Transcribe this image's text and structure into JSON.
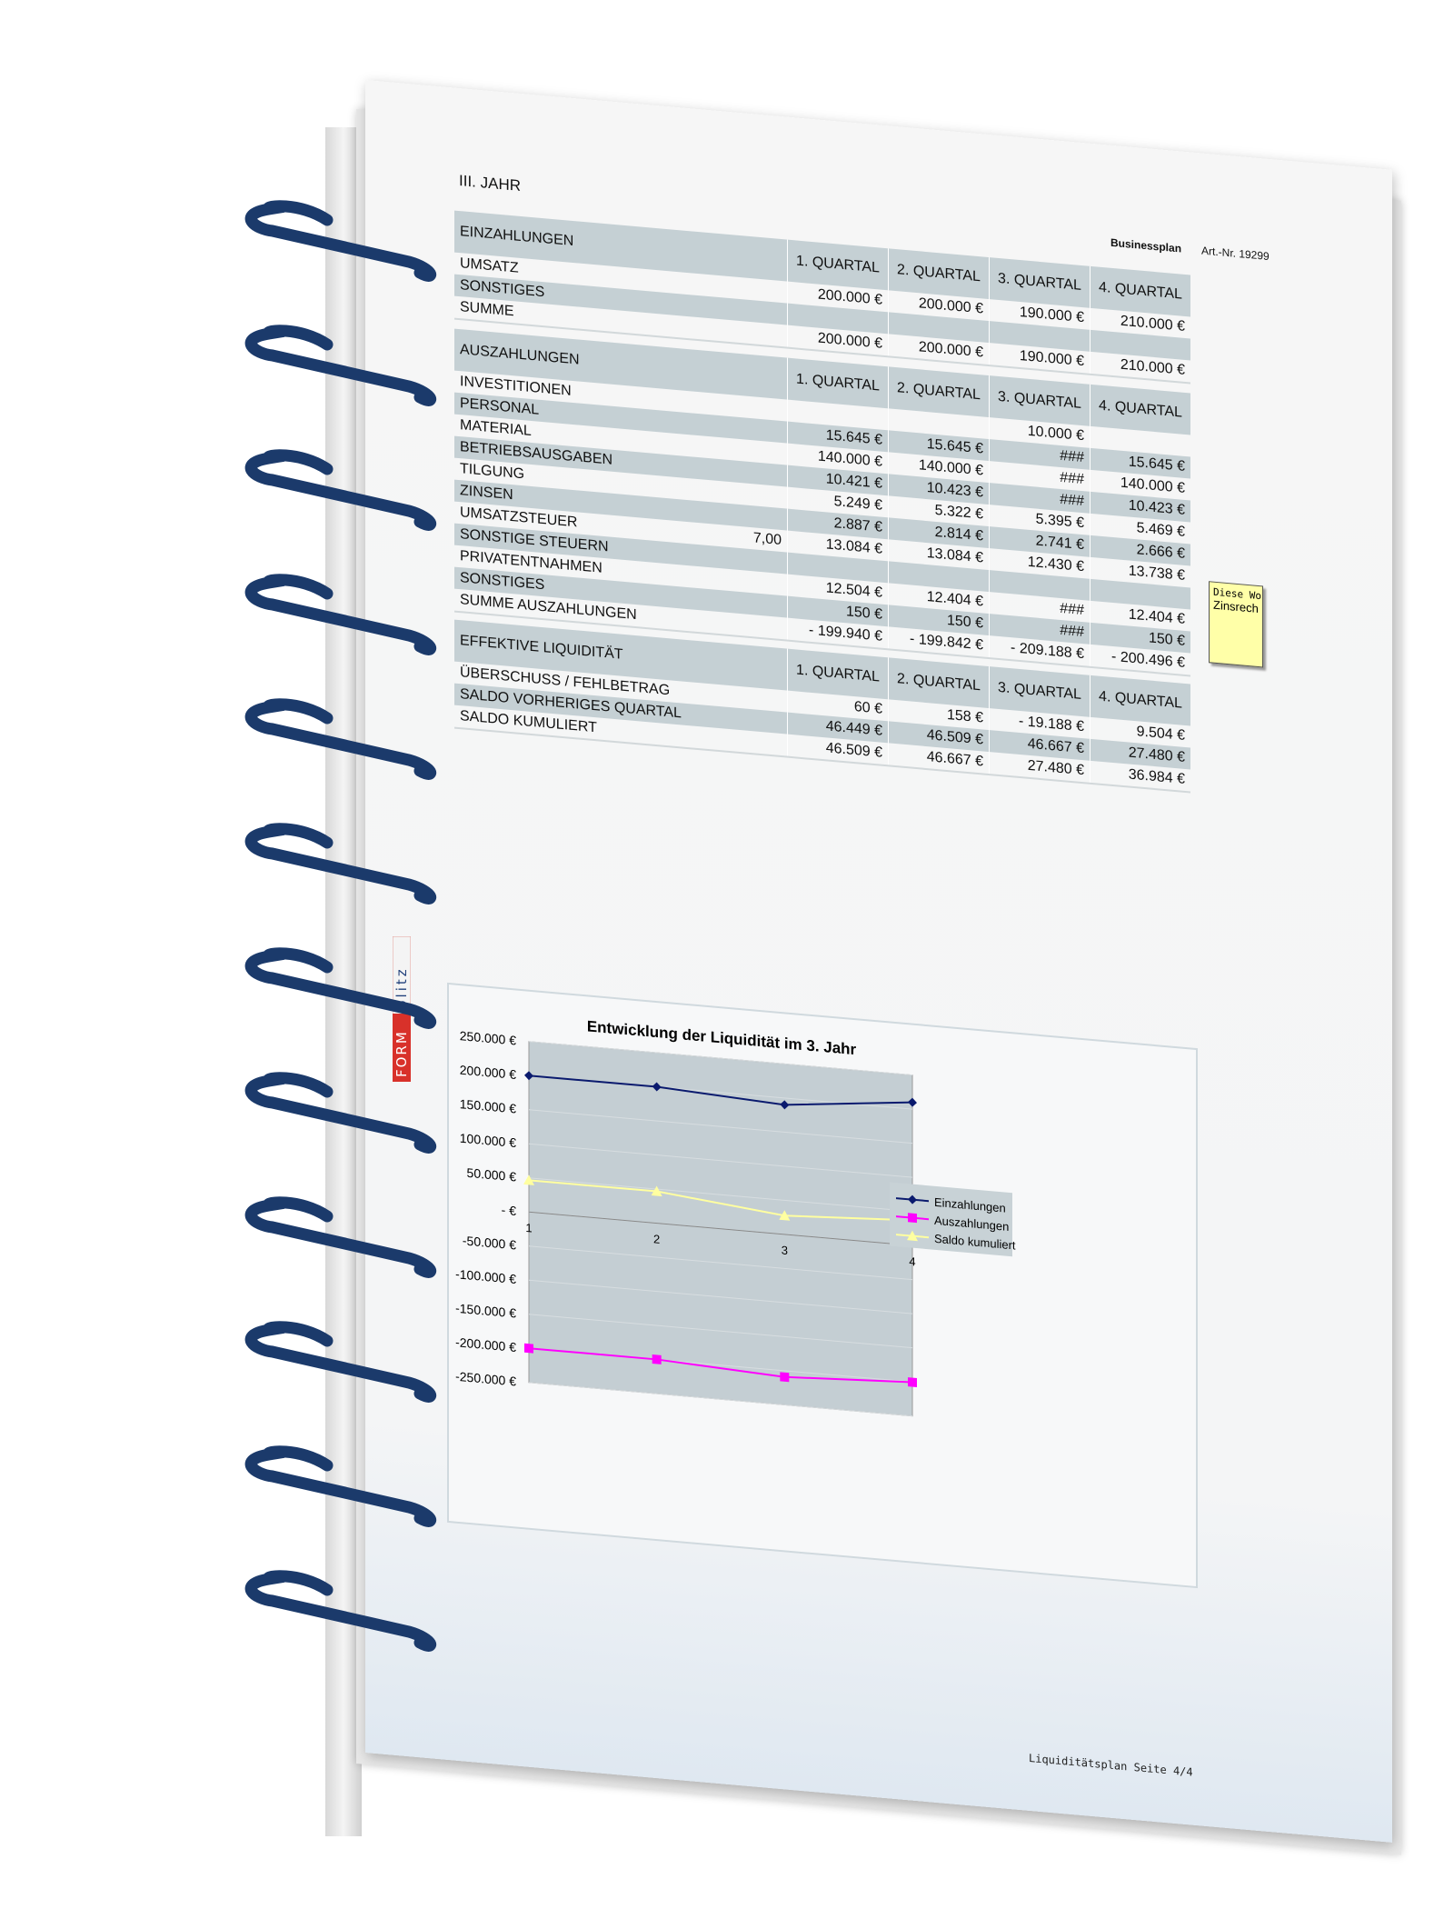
{
  "header": {
    "year": "III. JAHR",
    "doc_type": "Businessplan",
    "article": "Art.-Nr. 19299"
  },
  "quarters": [
    "1. QUARTAL",
    "2. QUARTAL",
    "3. QUARTAL",
    "4. QUARTAL"
  ],
  "einzahlungen": {
    "title": "EINZAHLUNGEN",
    "rows": [
      {
        "label": "UMSATZ",
        "extra": "",
        "values": [
          "200.000 €",
          "200.000 €",
          "190.000 €",
          "210.000 €"
        ]
      },
      {
        "label": "SONSTIGES",
        "extra": "",
        "values": [
          "",
          "",
          "",
          ""
        ]
      },
      {
        "label": "SUMME",
        "extra": "",
        "values": [
          "200.000 €",
          "200.000 €",
          "190.000 €",
          "210.000 €"
        ]
      }
    ]
  },
  "auszahlungen": {
    "title": "AUSZAHLUNGEN",
    "rows": [
      {
        "label": "INVESTITIONEN",
        "extra": "",
        "values": [
          "",
          "",
          "10.000 €",
          ""
        ]
      },
      {
        "label": "PERSONAL",
        "extra": "",
        "values": [
          "15.645 €",
          "15.645 €",
          "###",
          "15.645 €"
        ]
      },
      {
        "label": "MATERIAL",
        "extra": "",
        "values": [
          "140.000 €",
          "140.000 €",
          "###",
          "140.000 €"
        ]
      },
      {
        "label": "BETRIEBSAUSGABEN",
        "extra": "",
        "values": [
          "10.421 €",
          "10.423 €",
          "###",
          "10.423 €"
        ]
      },
      {
        "label": "TILGUNG",
        "extra": "",
        "values": [
          "5.249 €",
          "5.322 €",
          "5.395 €",
          "5.469 €"
        ]
      },
      {
        "label": "ZINSEN",
        "extra": "",
        "values": [
          "2.887 €",
          "2.814 €",
          "2.741 €",
          "2.666 €"
        ]
      },
      {
        "label": "UMSATZSTEUER",
        "extra": "7,00",
        "values": [
          "13.084 €",
          "13.084 €",
          "12.430 €",
          "13.738 €"
        ]
      },
      {
        "label": "SONSTIGE STEUERN",
        "extra": "",
        "values": [
          "",
          "",
          "",
          ""
        ]
      },
      {
        "label": "PRIVATENTNAHMEN",
        "extra": "",
        "values": [
          "12.504 €",
          "12.404 €",
          "###",
          "12.404 €"
        ]
      },
      {
        "label": "SONSTIGES",
        "extra": "",
        "values": [
          "150 €",
          "150 €",
          "###",
          "150 €"
        ]
      },
      {
        "label": "SUMME AUSZAHLUNGEN",
        "extra": "",
        "values": [
          "-  199.940 €",
          "-  199.842 €",
          "-  209.188 €",
          "-  200.496 €"
        ]
      }
    ]
  },
  "liquiditaet": {
    "title": "EFFEKTIVE LIQUIDITÄT",
    "rows": [
      {
        "label": "ÜBERSCHUSS / FEHLBETRAG",
        "extra": "",
        "values": [
          "60 €",
          "158 €",
          "-  19.188 €",
          "9.504 €"
        ]
      },
      {
        "label": "SALDO VORHERIGES QUARTAL",
        "extra": "",
        "values": [
          "46.449 €",
          "46.509 €",
          "46.667 €",
          "27.480 €"
        ]
      },
      {
        "label": "SALDO KUMULIERT",
        "extra": "",
        "values": [
          "46.509 €",
          "46.667 €",
          "27.480 €",
          "36.984 €"
        ]
      }
    ]
  },
  "note": {
    "line1": "Diese Wo",
    "line2": "Zinsrech"
  },
  "footer": "Liquiditätsplan Seite 4/4",
  "logo": {
    "text": "FORMblitz",
    "colors": {
      "red": "#d8312a",
      "blue": "#1f3f7a"
    }
  },
  "chart_data": {
    "type": "line",
    "title": "Entwicklung der Liquidität im 3. Jahr",
    "x": [
      "1",
      "2",
      "3",
      "4"
    ],
    "yticks": [
      "250.000 €",
      "200.000 €",
      "150.000 €",
      "100.000 €",
      "50.000 €",
      "- €",
      "-50.000 €",
      "-100.000 €",
      "-150.000 €",
      "-200.000 €",
      "-250.000 €"
    ],
    "ylim": [
      -250000,
      250000
    ],
    "grid": true,
    "legend": "right",
    "series": [
      {
        "name": "Einzahlungen",
        "values": [
          200000,
          200000,
          190000,
          210000
        ],
        "color": "#0a1a6e",
        "marker": "diamond"
      },
      {
        "name": "Auszahlungen",
        "values": [
          -199940,
          -199842,
          -209188,
          -200496
        ],
        "color": "#ff00ff",
        "marker": "square"
      },
      {
        "name": "Saldo kumuliert",
        "values": [
          46509,
          46667,
          27480,
          36984
        ],
        "color": "#ffffa0",
        "marker": "triangle"
      }
    ]
  },
  "colors": {
    "header_fill": "#c5d0d4",
    "plot_fill": "#c4ced3",
    "spiral": "#1b3a6b"
  }
}
